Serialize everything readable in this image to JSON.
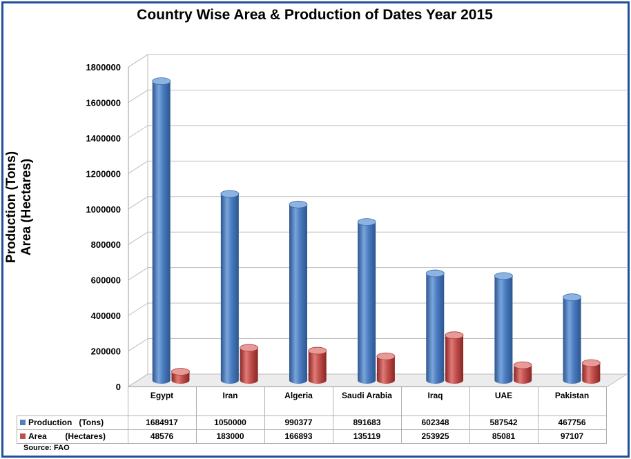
{
  "chart_data": {
    "type": "bar",
    "title": "Country Wise Area & Production of Dates Year 2015",
    "ylabel_line1": "Production (Tons)",
    "ylabel_line2": "Area (Hectares)",
    "ylim": [
      0,
      1800000
    ],
    "yticks": [
      "0",
      "200000",
      "400000",
      "600000",
      "800000",
      "1000000",
      "1200000",
      "1400000",
      "1600000",
      "1800000"
    ],
    "categories": [
      "Egypt",
      "Iran",
      "Algeria",
      "Saudi Arabia",
      "Iraq",
      "UAE",
      "Pakistan"
    ],
    "series": [
      {
        "name": "Production   (Tons)",
        "color": "#4f81bd",
        "values": [
          1684917,
          1050000,
          990377,
          891683,
          602348,
          587542,
          467756
        ],
        "labels": [
          "1684917",
          "1050000",
          "990377",
          "891683",
          "602348",
          "587542",
          "467756"
        ]
      },
      {
        "name": "Area        (Hectares)",
        "color": "#c0504d",
        "values": [
          48576,
          183000,
          166893,
          135119,
          253925,
          85081,
          97107
        ],
        "labels": [
          "48576",
          "183000",
          "166893",
          "135119",
          "253925",
          "85081",
          "97107"
        ]
      }
    ],
    "grid": true,
    "legend": "data-table",
    "source": "Source: FAO"
  }
}
